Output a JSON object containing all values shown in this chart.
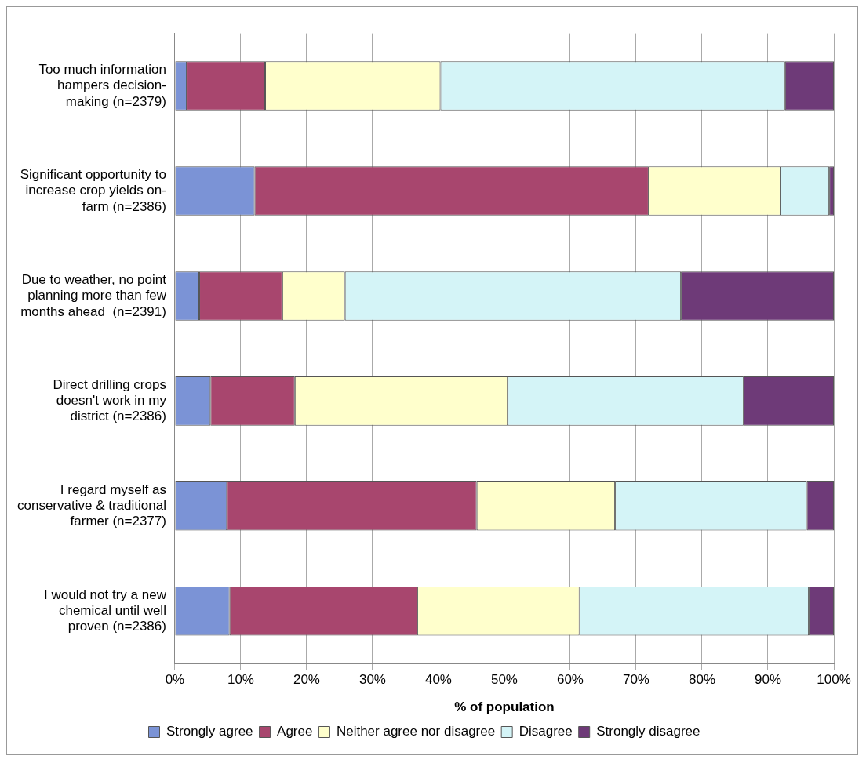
{
  "chart_data": {
    "type": "bar",
    "orientation": "horizontal",
    "stacked": true,
    "categories": [
      "Too much information\nhampers decision-\nmaking (n=2379)",
      "Significant opportunity to\nincrease crop yields on-\nfarm (n=2386)",
      "Due to weather, no point\nplanning more than few\nmonths ahead  (n=2391)",
      "Direct drilling crops\ndoesn't work in my\ndistrict (n=2386)",
      "I regard myself as\nconservative & traditional\nfarmer (n=2377)",
      "I would not try a new\nchemical until well\nproven (n=2386)"
    ],
    "series": [
      {
        "name": "Strongly agree",
        "color": "#7b93d6",
        "values": [
          1.8,
          12.1,
          3.7,
          5.4,
          7.9,
          8.3
        ]
      },
      {
        "name": "Agree",
        "color": "#a8466e",
        "values": [
          11.9,
          59.8,
          12.6,
          12.8,
          37.9,
          28.5
        ]
      },
      {
        "name": "Neither agree nor disagree",
        "color": "#ffffcc",
        "values": [
          26.6,
          20,
          9.5,
          32.3,
          21,
          24.6
        ]
      },
      {
        "name": "Disagree",
        "color": "#d4f4f7",
        "values": [
          52.3,
          7.4,
          51,
          35.8,
          29.1,
          34.8
        ]
      },
      {
        "name": "Strongly disagree",
        "color": "#6e3a78",
        "values": [
          7.4,
          0.7,
          23.2,
          13.7,
          4.1,
          3.8
        ]
      }
    ],
    "xlim": [
      0,
      100
    ],
    "xticks": [
      {
        "value": 0,
        "label": "0%"
      },
      {
        "value": 10,
        "label": "10%"
      },
      {
        "value": 20,
        "label": "20%"
      },
      {
        "value": 30,
        "label": "30%"
      },
      {
        "value": 40,
        "label": "40%"
      },
      {
        "value": 50,
        "label": "50%"
      },
      {
        "value": 60,
        "label": "60%"
      },
      {
        "value": 70,
        "label": "70%"
      },
      {
        "value": 80,
        "label": "80%"
      },
      {
        "value": 90,
        "label": "90%"
      },
      {
        "value": 100,
        "label": "100%"
      }
    ],
    "xlabel": "% of population",
    "grid": "x",
    "legend": "bottom"
  }
}
